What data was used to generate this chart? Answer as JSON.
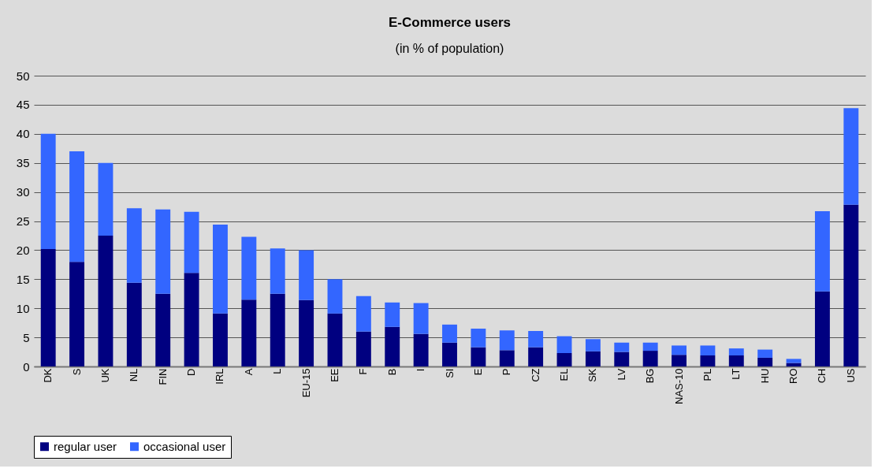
{
  "chart_data": {
    "type": "bar",
    "title": "E-Commerce users",
    "subtitle": "(in % of population)",
    "categories": [
      "DK",
      "S",
      "UK",
      "NL",
      "FIN",
      "D",
      "IRL",
      "A",
      "L",
      "EU-15",
      "EE",
      "F",
      "B",
      "I",
      "SI",
      "E",
      "P",
      "CZ",
      "EL",
      "SK",
      "LV",
      "BG",
      "NAS-10",
      "PL",
      "LT",
      "HU",
      "RO",
      "CH",
      "US"
    ],
    "stacked": true,
    "series": [
      {
        "name": "regular user",
        "color": "#000080",
        "values": [
          20.2,
          18.0,
          22.5,
          14.4,
          12.5,
          16.1,
          9.1,
          11.5,
          12.5,
          11.4,
          9.1,
          6.0,
          6.8,
          5.6,
          4.1,
          3.3,
          2.8,
          3.3,
          2.3,
          2.6,
          2.5,
          2.7,
          2.0,
          1.9,
          1.9,
          1.5,
          0.6,
          12.9,
          27.8
        ]
      },
      {
        "name": "occasional user",
        "color": "#3366ff",
        "values": [
          19.8,
          19.0,
          12.5,
          12.8,
          14.5,
          10.5,
          15.3,
          10.8,
          7.8,
          8.6,
          5.9,
          6.1,
          4.2,
          5.3,
          3.1,
          3.2,
          3.4,
          2.8,
          2.9,
          2.1,
          1.6,
          1.4,
          1.6,
          1.7,
          1.2,
          1.4,
          0.7,
          13.8,
          16.6
        ]
      }
    ],
    "ylim": [
      0,
      50
    ],
    "yticks": [
      0,
      5,
      10,
      15,
      20,
      25,
      30,
      35,
      40,
      45,
      50
    ],
    "grid": "y",
    "legend": "bottom"
  }
}
